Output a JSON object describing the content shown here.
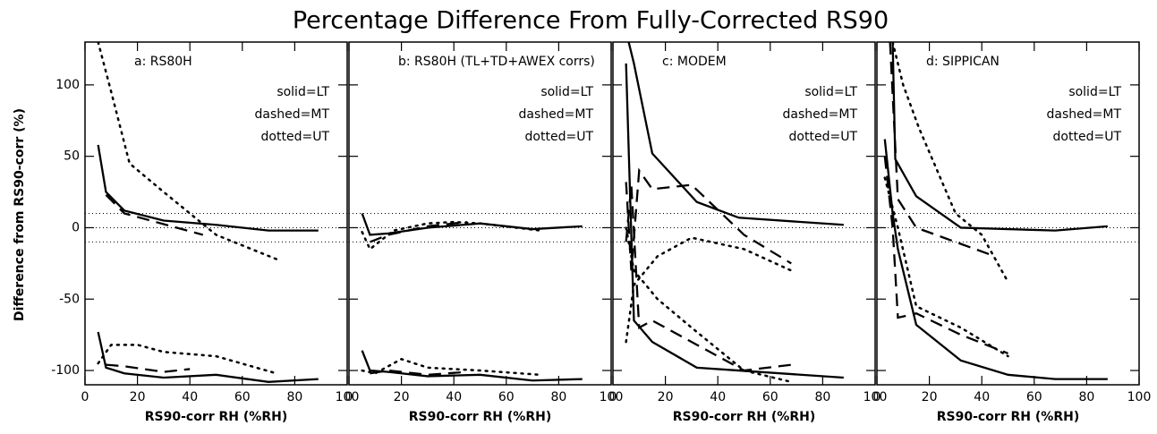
{
  "title": "Percentage Difference From Fully-Corrected RS90",
  "y_label": "Difference from RS90-corr (%)",
  "chart_data": [
    {
      "type": "line",
      "title": "a: RS80H",
      "x_label": "RS90-corr RH (%RH)",
      "annotations": [
        "solid=LT",
        "dashed=MT",
        "dotted=UT"
      ],
      "xlim": [
        0,
        100
      ],
      "xticks": [
        0,
        20,
        40,
        60,
        80,
        100
      ],
      "ylim": [
        -110,
        130
      ],
      "yticks": [
        -100,
        -50,
        0,
        50,
        100
      ],
      "show_ytick_labels": true,
      "hlines": [
        10,
        0,
        -10
      ],
      "series": [
        {
          "color": "#000000",
          "dash": "solid",
          "x": [
            5,
            8,
            15,
            30,
            50,
            70,
            89
          ],
          "values": [
            58,
            25,
            12,
            5,
            2,
            -2,
            -2
          ]
        },
        {
          "color": "#000000",
          "dash": "dashed",
          "x": [
            8,
            15,
            25,
            45
          ],
          "values": [
            23,
            10,
            5,
            -5
          ]
        },
        {
          "color": "#000000",
          "dash": "dotted",
          "x": [
            5,
            10,
            17,
            30,
            40,
            50,
            73
          ],
          "values": [
            130,
            95,
            45,
            25,
            10,
            -5,
            -22
          ]
        },
        {
          "color": "#000000",
          "dash": "solid",
          "x": [
            5,
            8,
            15,
            30,
            50,
            70,
            89
          ],
          "values": [
            -73,
            -98,
            -102,
            -105,
            -103,
            -108,
            -106
          ]
        },
        {
          "color": "#000000",
          "dash": "dashed",
          "x": [
            8,
            15,
            30,
            40
          ],
          "values": [
            -96,
            -97,
            -101,
            -99
          ]
        },
        {
          "color": "#000000",
          "dash": "dotted",
          "x": [
            5,
            10,
            20,
            30,
            50,
            73
          ],
          "values": [
            -95,
            -82,
            -82,
            -87,
            -90,
            -102
          ]
        }
      ]
    },
    {
      "type": "line",
      "title": "b: RS80H (TL+TD+AWEX corrs)",
      "x_label": "RS90-corr RH (%RH)",
      "annotations": [
        "solid=LT",
        "dashed=MT",
        "dotted=UT"
      ],
      "xlim": [
        0,
        100
      ],
      "xticks": [
        0,
        20,
        40,
        60,
        80,
        100
      ],
      "ylim": [
        -110,
        130
      ],
      "yticks": [
        -100,
        -50,
        0,
        50,
        100
      ],
      "show_ytick_labels": false,
      "hlines": [
        10,
        0,
        -10
      ],
      "series": [
        {
          "color": "#000000",
          "dash": "solid",
          "x": [
            5,
            8,
            15,
            30,
            50,
            70,
            89
          ],
          "values": [
            10,
            -5,
            -4,
            0,
            3,
            -1,
            1
          ]
        },
        {
          "color": "#000000",
          "dash": "dashed",
          "x": [
            8,
            15,
            30,
            45
          ],
          "values": [
            -10,
            -5,
            1,
            4
          ]
        },
        {
          "color": "#000000",
          "dash": "dotted",
          "x": [
            5,
            8,
            17,
            30,
            40,
            50,
            73
          ],
          "values": [
            -3,
            -15,
            -2,
            3,
            4,
            3,
            -2
          ]
        },
        {
          "color": "#000000",
          "dash": "solid",
          "x": [
            5,
            8,
            15,
            30,
            50,
            70,
            89
          ],
          "values": [
            -86,
            -100,
            -101,
            -104,
            -103,
            -107,
            -106
          ]
        },
        {
          "color": "#000000",
          "dash": "dashed",
          "x": [
            8,
            15,
            30,
            45
          ],
          "values": [
            -102,
            -100,
            -103,
            -101
          ]
        },
        {
          "color": "#000000",
          "dash": "dotted",
          "x": [
            5,
            10,
            20,
            30,
            50,
            73
          ],
          "values": [
            -100,
            -102,
            -92,
            -98,
            -100,
            -103
          ]
        }
      ]
    },
    {
      "type": "line",
      "title": "c: MODEM",
      "x_label": "RS90-corr RH (%RH)",
      "annotations": [
        "solid=LT",
        "dashed=MT",
        "dotted=UT"
      ],
      "xlim": [
        0,
        100
      ],
      "xticks": [
        0,
        20,
        40,
        60,
        80,
        100
      ],
      "ylim": [
        -110,
        130
      ],
      "yticks": [
        -100,
        -50,
        0,
        50,
        100
      ],
      "show_ytick_labels": false,
      "hlines": [
        10,
        0,
        -10
      ],
      "series": [
        {
          "color": "#000000",
          "dash": "solid",
          "x": [
            6,
            8,
            15,
            32,
            48,
            88
          ],
          "values": [
            130,
            115,
            52,
            18,
            7,
            2
          ]
        },
        {
          "color": "#000000",
          "dash": "dashed",
          "x": [
            5,
            7,
            10,
            15,
            30,
            50,
            68
          ],
          "values": [
            32,
            -30,
            40,
            27,
            30,
            -5,
            -25
          ]
        },
        {
          "color": "#000000",
          "dash": "dotted",
          "x": [
            5,
            8,
            17,
            30,
            50,
            68
          ],
          "values": [
            -80,
            -40,
            -20,
            -7,
            -15,
            -30
          ]
        },
        {
          "color": "#000000",
          "dash": "solid",
          "x": [
            5,
            8,
            15,
            32,
            48,
            88
          ],
          "values": [
            115,
            -65,
            -80,
            -98,
            -100,
            -105
          ]
        },
        {
          "color": "#000000",
          "dash": "dashed",
          "x": [
            5,
            7,
            10,
            15,
            30,
            50,
            68
          ],
          "values": [
            -10,
            30,
            -70,
            -65,
            -80,
            -100,
            -96
          ]
        },
        {
          "color": "#000000",
          "dash": "dotted",
          "x": [
            5,
            8,
            17,
            30,
            50,
            68
          ],
          "values": [
            0,
            -30,
            -50,
            -70,
            -100,
            -108
          ]
        }
      ]
    },
    {
      "type": "line",
      "title": "d: SIPPICAN",
      "x_label": "RS90-corr RH (%RH)",
      "annotations": [
        "solid=LT",
        "dashed=MT",
        "dotted=UT"
      ],
      "xlim": [
        0,
        100
      ],
      "xticks": [
        0,
        20,
        40,
        60,
        80,
        100
      ],
      "ylim": [
        -110,
        130
      ],
      "yticks": [
        -100,
        -50,
        0,
        50,
        100
      ],
      "show_ytick_labels": false,
      "hlines": [
        10,
        0,
        -10
      ],
      "series": [
        {
          "color": "#000000",
          "dash": "solid",
          "x": [
            6,
            7,
            15,
            32,
            68,
            88
          ],
          "values": [
            130,
            48,
            22,
            0,
            -2,
            1
          ]
        },
        {
          "color": "#000000",
          "dash": "dashed",
          "x": [
            5,
            8,
            15,
            33,
            45
          ],
          "values": [
            130,
            20,
            0,
            -12,
            -20
          ]
        },
        {
          "color": "#000000",
          "dash": "dotted",
          "x": [
            6,
            10,
            16,
            30,
            40,
            50
          ],
          "values": [
            130,
            100,
            70,
            10,
            -5,
            -38
          ]
        },
        {
          "color": "#000000",
          "dash": "solid",
          "x": [
            3,
            6,
            8,
            15,
            32,
            50,
            68,
            88
          ],
          "values": [
            62,
            10,
            -15,
            -68,
            -93,
            -103,
            -106,
            -106
          ]
        },
        {
          "color": "#000000",
          "dash": "dashed",
          "x": [
            3,
            6,
            8,
            15,
            32,
            50
          ],
          "values": [
            50,
            0,
            -63,
            -60,
            -75,
            -88
          ]
        },
        {
          "color": "#000000",
          "dash": "dotted",
          "x": [
            3,
            8,
            15,
            32,
            50
          ],
          "values": [
            35,
            0,
            -55,
            -70,
            -90
          ]
        }
      ]
    }
  ]
}
